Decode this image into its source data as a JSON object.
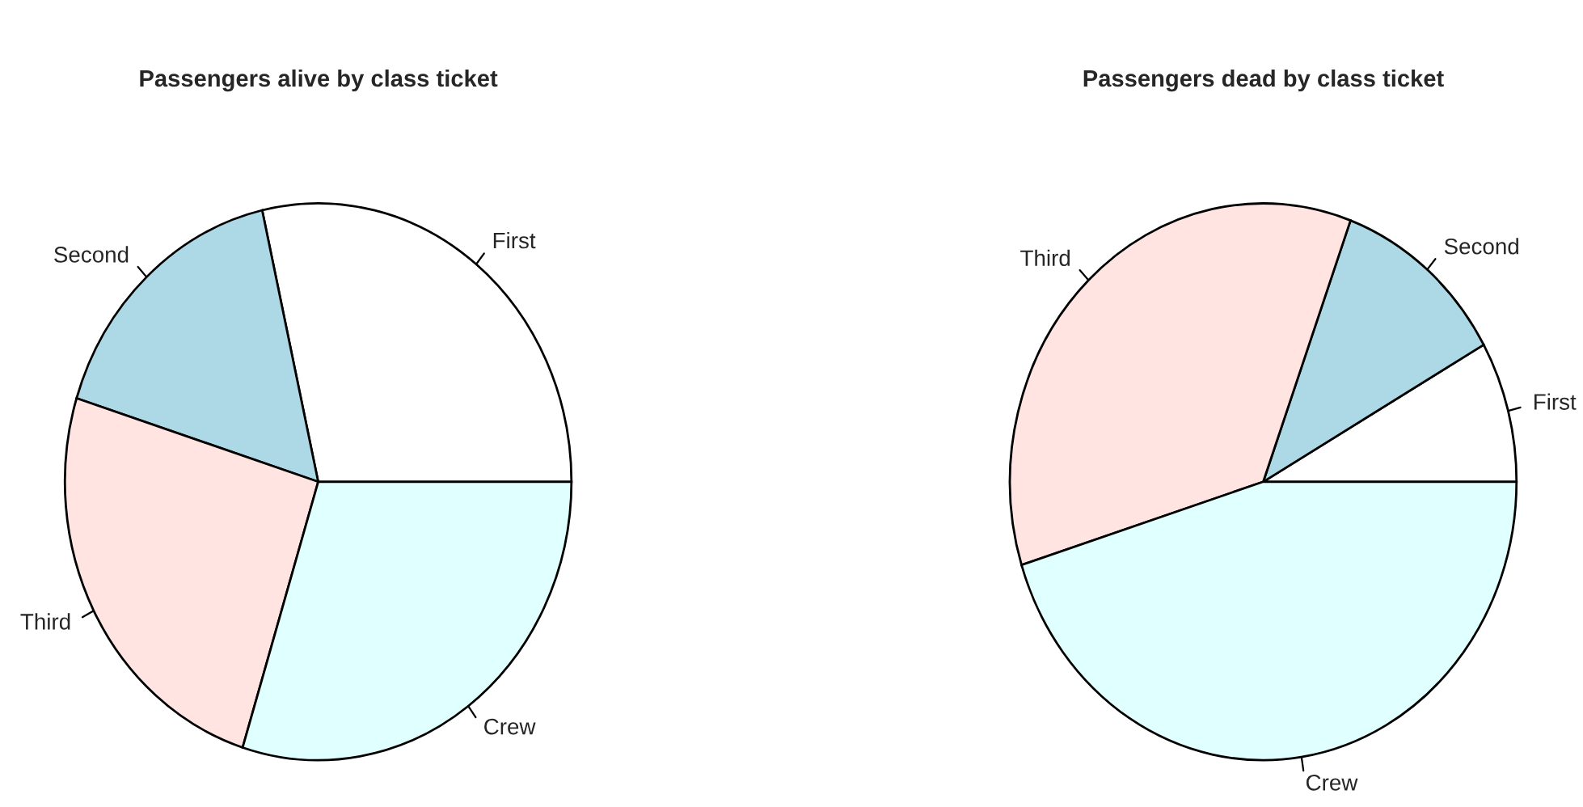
{
  "chart_data": [
    {
      "type": "pie",
      "title": "Passengers alive by class ticket",
      "categories": [
        "First",
        "Second",
        "Third",
        "Crew"
      ],
      "values": [
        28.55,
        16.6,
        25.03,
        29.82
      ],
      "colors": [
        "#ffffff",
        "#add8e6",
        "#ffe4e1",
        "#e0ffff"
      ]
    },
    {
      "type": "pie",
      "title": "Passengers dead by class ticket",
      "categories": [
        "First",
        "Second",
        "Third",
        "Crew"
      ],
      "values": [
        8.19,
        11.21,
        35.43,
        45.17
      ],
      "colors": [
        "#ffffff",
        "#add8e6",
        "#ffe4e1",
        "#e0ffff"
      ]
    }
  ]
}
